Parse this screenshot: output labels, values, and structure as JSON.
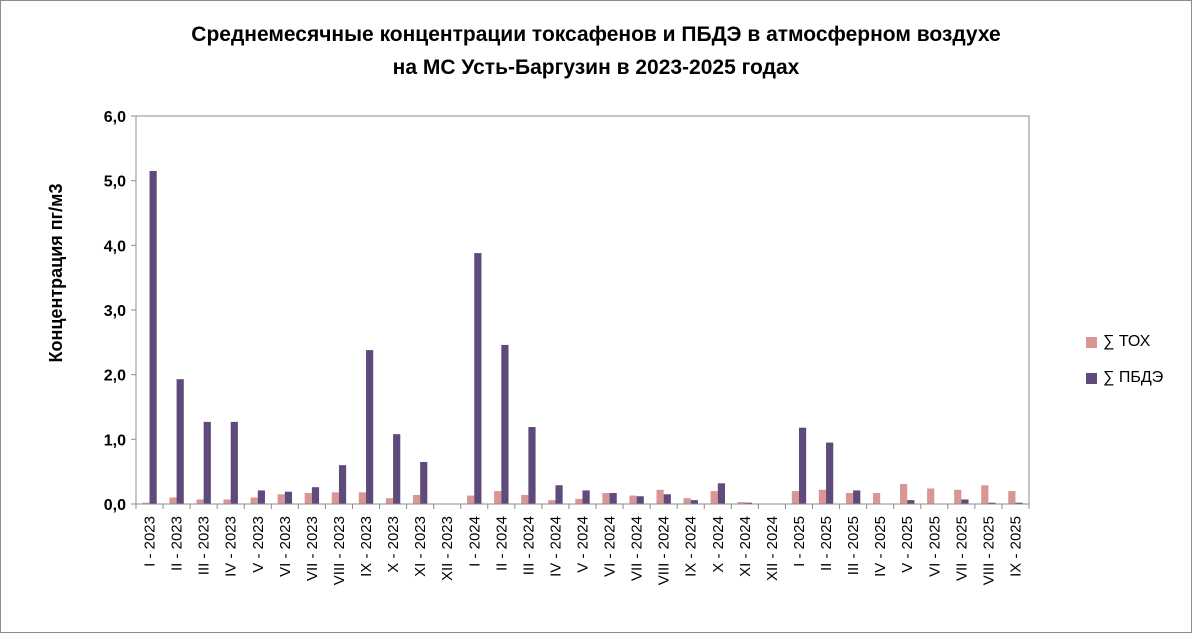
{
  "chart_data": {
    "type": "bar",
    "title": [
      "Среднемесячные концентрации токсафенов и ПБДЭ в атмосферном воздухе",
      "на МС Усть-Баргузин в 2023-2025 годах"
    ],
    "ylabel": "Концентрация пг/м3",
    "xlabel": "",
    "ylim": [
      0,
      6.0
    ],
    "yticks": [
      "0,0",
      "1,0",
      "2,0",
      "3,0",
      "4,0",
      "5,0",
      "6,0"
    ],
    "grid": false,
    "legend_position": "right",
    "categories": [
      "I - 2023",
      "II - 2023",
      "III - 2023",
      "IV - 2023",
      "V - 2023",
      "VI - 2023",
      "VII - 2023",
      "VIII - 2023",
      "IX - 2023",
      "X - 2023",
      "XI - 2023",
      "XII - 2023",
      "I - 2024",
      "II - 2024",
      "III - 2024",
      "IV - 2024",
      "V - 2024",
      "VI - 2024",
      "VII - 2024",
      "VIII - 2024",
      "IX - 2024",
      "X - 2024",
      "XI - 2024",
      "XII - 2024",
      "I - 2025",
      "II - 2025",
      "III - 2025",
      "IV - 2025",
      "V - 2025",
      "VI - 2025",
      "VII - 2025",
      "VIII - 2025",
      "IX - 2025"
    ],
    "series": [
      {
        "name": "∑ ТОХ",
        "color": "#d99694",
        "values": [
          0.02,
          0.1,
          0.07,
          0.07,
          0.1,
          0.15,
          0.17,
          0.18,
          0.18,
          0.09,
          0.14,
          0.0,
          0.13,
          0.2,
          0.14,
          0.06,
          0.08,
          0.17,
          0.13,
          0.22,
          0.09,
          0.2,
          0.03,
          0.0,
          0.2,
          0.22,
          0.17,
          0.17,
          0.31,
          0.24,
          0.22,
          0.29,
          0.2
        ]
      },
      {
        "name": "∑ ПБДЭ",
        "color": "#604a7b",
        "values": [
          5.15,
          1.93,
          1.27,
          1.27,
          0.21,
          0.19,
          0.26,
          0.6,
          2.38,
          1.08,
          0.65,
          0.0,
          3.88,
          2.46,
          1.19,
          0.29,
          0.21,
          0.17,
          0.12,
          0.15,
          0.06,
          0.32,
          0.02,
          0.0,
          1.18,
          0.95,
          0.21,
          0.0,
          0.06,
          0.0,
          0.07,
          0.02,
          0.02
        ]
      }
    ]
  }
}
